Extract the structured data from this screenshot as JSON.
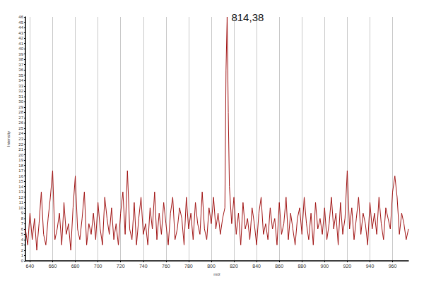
{
  "chart_data": {
    "type": "line",
    "color": "#a01414",
    "grid": true,
    "x_label": "m/z",
    "y_label": "Intensity",
    "xlim": [
      636,
      974
    ],
    "xticks": [
      640,
      660,
      680,
      700,
      720,
      740,
      760,
      780,
      800,
      820,
      840,
      860,
      880,
      900,
      920,
      940,
      960
    ],
    "ylim": [
      0,
      46
    ],
    "yticks": [
      0,
      1,
      2,
      3,
      4,
      5,
      6,
      7,
      8,
      9,
      10,
      11,
      12,
      13,
      14,
      15,
      16,
      17,
      18,
      19,
      20,
      21,
      22,
      23,
      24,
      25,
      26,
      27,
      28,
      29,
      30,
      31,
      32,
      33,
      34,
      35,
      36,
      37,
      38,
      39,
      40,
      41,
      42,
      43,
      44,
      45,
      46
    ],
    "annotations": [
      {
        "text": "814,38",
        "x": 814,
        "y": 46
      }
    ],
    "x": [
      636,
      638,
      640,
      642,
      644,
      646,
      648,
      650,
      652,
      654,
      656,
      658,
      660,
      662,
      664,
      666,
      668,
      670,
      672,
      674,
      676,
      678,
      680,
      682,
      684,
      686,
      688,
      690,
      692,
      694,
      696,
      698,
      700,
      702,
      704,
      706,
      708,
      710,
      712,
      714,
      716,
      718,
      720,
      722,
      724,
      726,
      728,
      730,
      732,
      734,
      736,
      738,
      740,
      742,
      744,
      746,
      748,
      750,
      752,
      754,
      756,
      758,
      760,
      762,
      764,
      766,
      768,
      770,
      772,
      774,
      776,
      778,
      780,
      782,
      784,
      786,
      788,
      790,
      792,
      794,
      796,
      798,
      800,
      802,
      804,
      806,
      808,
      810,
      812,
      813,
      814,
      815,
      816,
      818,
      820,
      822,
      824,
      826,
      828,
      830,
      832,
      834,
      836,
      838,
      840,
      842,
      844,
      846,
      848,
      850,
      852,
      854,
      856,
      858,
      860,
      862,
      864,
      866,
      868,
      870,
      872,
      874,
      876,
      878,
      880,
      882,
      884,
      886,
      888,
      890,
      892,
      894,
      896,
      898,
      900,
      902,
      904,
      906,
      908,
      910,
      912,
      914,
      916,
      918,
      920,
      922,
      924,
      926,
      928,
      930,
      932,
      934,
      936,
      938,
      940,
      942,
      944,
      946,
      948,
      950,
      952,
      954,
      956,
      958,
      960,
      962,
      964,
      966,
      968,
      970,
      972,
      974
    ],
    "values": [
      6,
      3,
      9,
      4,
      8,
      2,
      7,
      13,
      5,
      3,
      8,
      12,
      17,
      4,
      6,
      9,
      3,
      11,
      5,
      7,
      2,
      10,
      16,
      6,
      4,
      8,
      13,
      3,
      7,
      5,
      9,
      4,
      11,
      6,
      3,
      12,
      8,
      5,
      10,
      4,
      7,
      3,
      9,
      13,
      5,
      17,
      6,
      4,
      11,
      3,
      8,
      12,
      5,
      7,
      3,
      10,
      6,
      13,
      4,
      9,
      5,
      11,
      7,
      3,
      9,
      12,
      4,
      6,
      10,
      8,
      3,
      12,
      6,
      9,
      4,
      11,
      7,
      5,
      13,
      6,
      4,
      10,
      7,
      12,
      6,
      9,
      5,
      8,
      10,
      36,
      46,
      28,
      14,
      7,
      12,
      5,
      9,
      3,
      11,
      6,
      8,
      4,
      10,
      7,
      3,
      9,
      12,
      5,
      7,
      4,
      10,
      6,
      8,
      3,
      11,
      5,
      7,
      12,
      4,
      9,
      6,
      3,
      8,
      10,
      5,
      12,
      7,
      4,
      9,
      3,
      11,
      6,
      8,
      5,
      10,
      4,
      7,
      12,
      6,
      9,
      3,
      11,
      5,
      8,
      17,
      6,
      10,
      4,
      8,
      12,
      5,
      9,
      7,
      3,
      11,
      6,
      9,
      5,
      12,
      7,
      4,
      10,
      8,
      6,
      13,
      16,
      12,
      5,
      9,
      7,
      4,
      6
    ]
  }
}
